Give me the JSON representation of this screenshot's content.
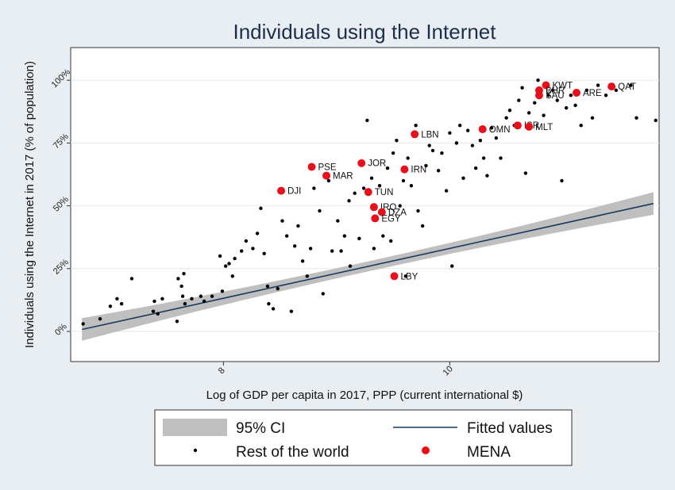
{
  "chart_data": {
    "type": "scatter",
    "title": "Individuals using the Internet",
    "xlabel": "Log of GDP per capita in 2017, PPP (current international $)",
    "ylabel": "Individuals using the Internet in 2017 (% of population)",
    "xlim": [
      6.65,
      11.85
    ],
    "ylim": [
      -12,
      113
    ],
    "xticks": [
      8,
      10
    ],
    "xtick_labels": [
      "8",
      "10"
    ],
    "yticks": [
      0,
      25,
      50,
      75,
      100
    ],
    "ytick_labels": [
      "0%",
      "25%",
      "50%",
      "75%",
      "100%"
    ],
    "grid": "horizontal",
    "fit": {
      "intercept": -66.25,
      "slope": 9.93,
      "x_range": [
        6.75,
        11.8
      ],
      "ci_halfwidth_center": 2,
      "ci_halfwidth_edge": 4.5
    },
    "colors": {
      "mena": "#e8101a",
      "world": "#000000",
      "fit": "#1b3a5e",
      "ci": "#bfbfbf",
      "background": "#e9eef3"
    },
    "series": [
      {
        "name": "MENA",
        "points": [
          {
            "label": "QAT",
            "x": 11.43,
            "y": 97.5
          },
          {
            "label": "KWT",
            "x": 10.85,
            "y": 98.0
          },
          {
            "label": "BHR",
            "x": 10.79,
            "y": 96.0
          },
          {
            "label": "SAU",
            "x": 10.79,
            "y": 94.0
          },
          {
            "label": "ARE",
            "x": 11.12,
            "y": 95.0
          },
          {
            "label": "OMN",
            "x": 10.29,
            "y": 80.5
          },
          {
            "label": "ISR",
            "x": 10.6,
            "y": 82.0
          },
          {
            "label": "MLT",
            "x": 10.7,
            "y": 81.5
          },
          {
            "label": "LBN",
            "x": 9.69,
            "y": 78.5
          },
          {
            "label": "JOR",
            "x": 9.22,
            "y": 67.0
          },
          {
            "label": "IRN",
            "x": 9.6,
            "y": 64.5
          },
          {
            "label": "PSE",
            "x": 8.78,
            "y": 65.5
          },
          {
            "label": "MAR",
            "x": 8.91,
            "y": 62.0
          },
          {
            "label": "DJI",
            "x": 8.51,
            "y": 56.0
          },
          {
            "label": "TUN",
            "x": 9.28,
            "y": 55.5
          },
          {
            "label": "IRQ",
            "x": 9.33,
            "y": 49.5
          },
          {
            "label": "DZA",
            "x": 9.4,
            "y": 47.5
          },
          {
            "label": "EGY",
            "x": 9.34,
            "y": 45.0
          },
          {
            "label": "LBY",
            "x": 9.51,
            "y": 22.0
          }
        ]
      },
      {
        "name": "Rest of the world",
        "points": [
          [
            6.76,
            3
          ],
          [
            6.91,
            5
          ],
          [
            7.0,
            10
          ],
          [
            7.06,
            13
          ],
          [
            7.1,
            11
          ],
          [
            7.19,
            21
          ],
          [
            7.38,
            8
          ],
          [
            7.39,
            12
          ],
          [
            7.42,
            7
          ],
          [
            7.46,
            13
          ],
          [
            7.59,
            4
          ],
          [
            7.6,
            21
          ],
          [
            7.63,
            18
          ],
          [
            7.64,
            14
          ],
          [
            7.65,
            23
          ],
          [
            7.66,
            11
          ],
          [
            7.72,
            13
          ],
          [
            7.8,
            14
          ],
          [
            7.83,
            12
          ],
          [
            7.9,
            14
          ],
          [
            7.97,
            30
          ],
          [
            7.99,
            16
          ],
          [
            8.02,
            26
          ],
          [
            8.05,
            27
          ],
          [
            8.08,
            22
          ],
          [
            8.1,
            29
          ],
          [
            8.16,
            32
          ],
          [
            8.2,
            36
          ],
          [
            8.26,
            33
          ],
          [
            8.3,
            39
          ],
          [
            8.33,
            49
          ],
          [
            8.36,
            31
          ],
          [
            8.39,
            18
          ],
          [
            8.4,
            11
          ],
          [
            8.44,
            9
          ],
          [
            8.48,
            17
          ],
          [
            8.52,
            44
          ],
          [
            8.56,
            38
          ],
          [
            8.6,
            8
          ],
          [
            8.63,
            34
          ],
          [
            8.66,
            42
          ],
          [
            8.7,
            28
          ],
          [
            8.74,
            22
          ],
          [
            8.77,
            33
          ],
          [
            8.8,
            57
          ],
          [
            8.85,
            48
          ],
          [
            8.88,
            15
          ],
          [
            8.93,
            60
          ],
          [
            8.96,
            32
          ],
          [
            9.01,
            44
          ],
          [
            9.04,
            32
          ],
          [
            9.07,
            38
          ],
          [
            9.11,
            52
          ],
          [
            9.16,
            55
          ],
          [
            9.2,
            37
          ],
          [
            9.24,
            57
          ],
          [
            9.27,
            84
          ],
          [
            9.31,
            61
          ],
          [
            9.33,
            33
          ],
          [
            9.38,
            58
          ],
          [
            9.41,
            38
          ],
          [
            9.45,
            65
          ],
          [
            9.48,
            36
          ],
          [
            9.5,
            71
          ],
          [
            9.53,
            76
          ],
          [
            9.56,
            50
          ],
          [
            9.59,
            60
          ],
          [
            9.61,
            22
          ],
          [
            9.63,
            69
          ],
          [
            9.66,
            58
          ],
          [
            9.7,
            82
          ],
          [
            9.72,
            48
          ],
          [
            9.76,
            42
          ],
          [
            9.79,
            66
          ],
          [
            9.82,
            74
          ],
          [
            9.85,
            72
          ],
          [
            9.9,
            64
          ],
          [
            9.93,
            71
          ],
          [
            9.97,
            56
          ],
          [
            10.0,
            79
          ],
          [
            10.02,
            26
          ],
          [
            10.06,
            75
          ],
          [
            10.09,
            82
          ],
          [
            10.12,
            61
          ],
          [
            10.16,
            80
          ],
          [
            10.2,
            74
          ],
          [
            10.23,
            65
          ],
          [
            10.27,
            76
          ],
          [
            10.3,
            69
          ],
          [
            10.33,
            62
          ],
          [
            10.37,
            81
          ],
          [
            10.41,
            77
          ],
          [
            10.45,
            69
          ],
          [
            10.5,
            85
          ],
          [
            10.53,
            88
          ],
          [
            10.57,
            82
          ],
          [
            10.61,
            92
          ],
          [
            10.64,
            97
          ],
          [
            10.67,
            63
          ],
          [
            10.7,
            87
          ],
          [
            10.75,
            91
          ],
          [
            10.78,
            100
          ],
          [
            10.83,
            86
          ],
          [
            10.87,
            94
          ],
          [
            10.91,
            96
          ],
          [
            10.95,
            92
          ],
          [
            10.99,
            60
          ],
          [
            11.03,
            89
          ],
          [
            11.07,
            94
          ],
          [
            11.11,
            90
          ],
          [
            11.16,
            82
          ],
          [
            11.21,
            96
          ],
          [
            11.26,
            85
          ],
          [
            11.31,
            98
          ],
          [
            11.38,
            94
          ],
          [
            11.47,
            96
          ],
          [
            11.6,
            98
          ],
          [
            11.65,
            85
          ],
          [
            11.82,
            84
          ],
          [
            9.12,
            26
          ]
        ]
      }
    ],
    "legend": {
      "position": "bottom",
      "entries": [
        {
          "key": "ci",
          "label": "95% CI"
        },
        {
          "key": "fit",
          "label": "Fitted values"
        },
        {
          "key": "world",
          "label": "Rest of the world"
        },
        {
          "key": "mena",
          "label": "MENA"
        }
      ]
    }
  }
}
